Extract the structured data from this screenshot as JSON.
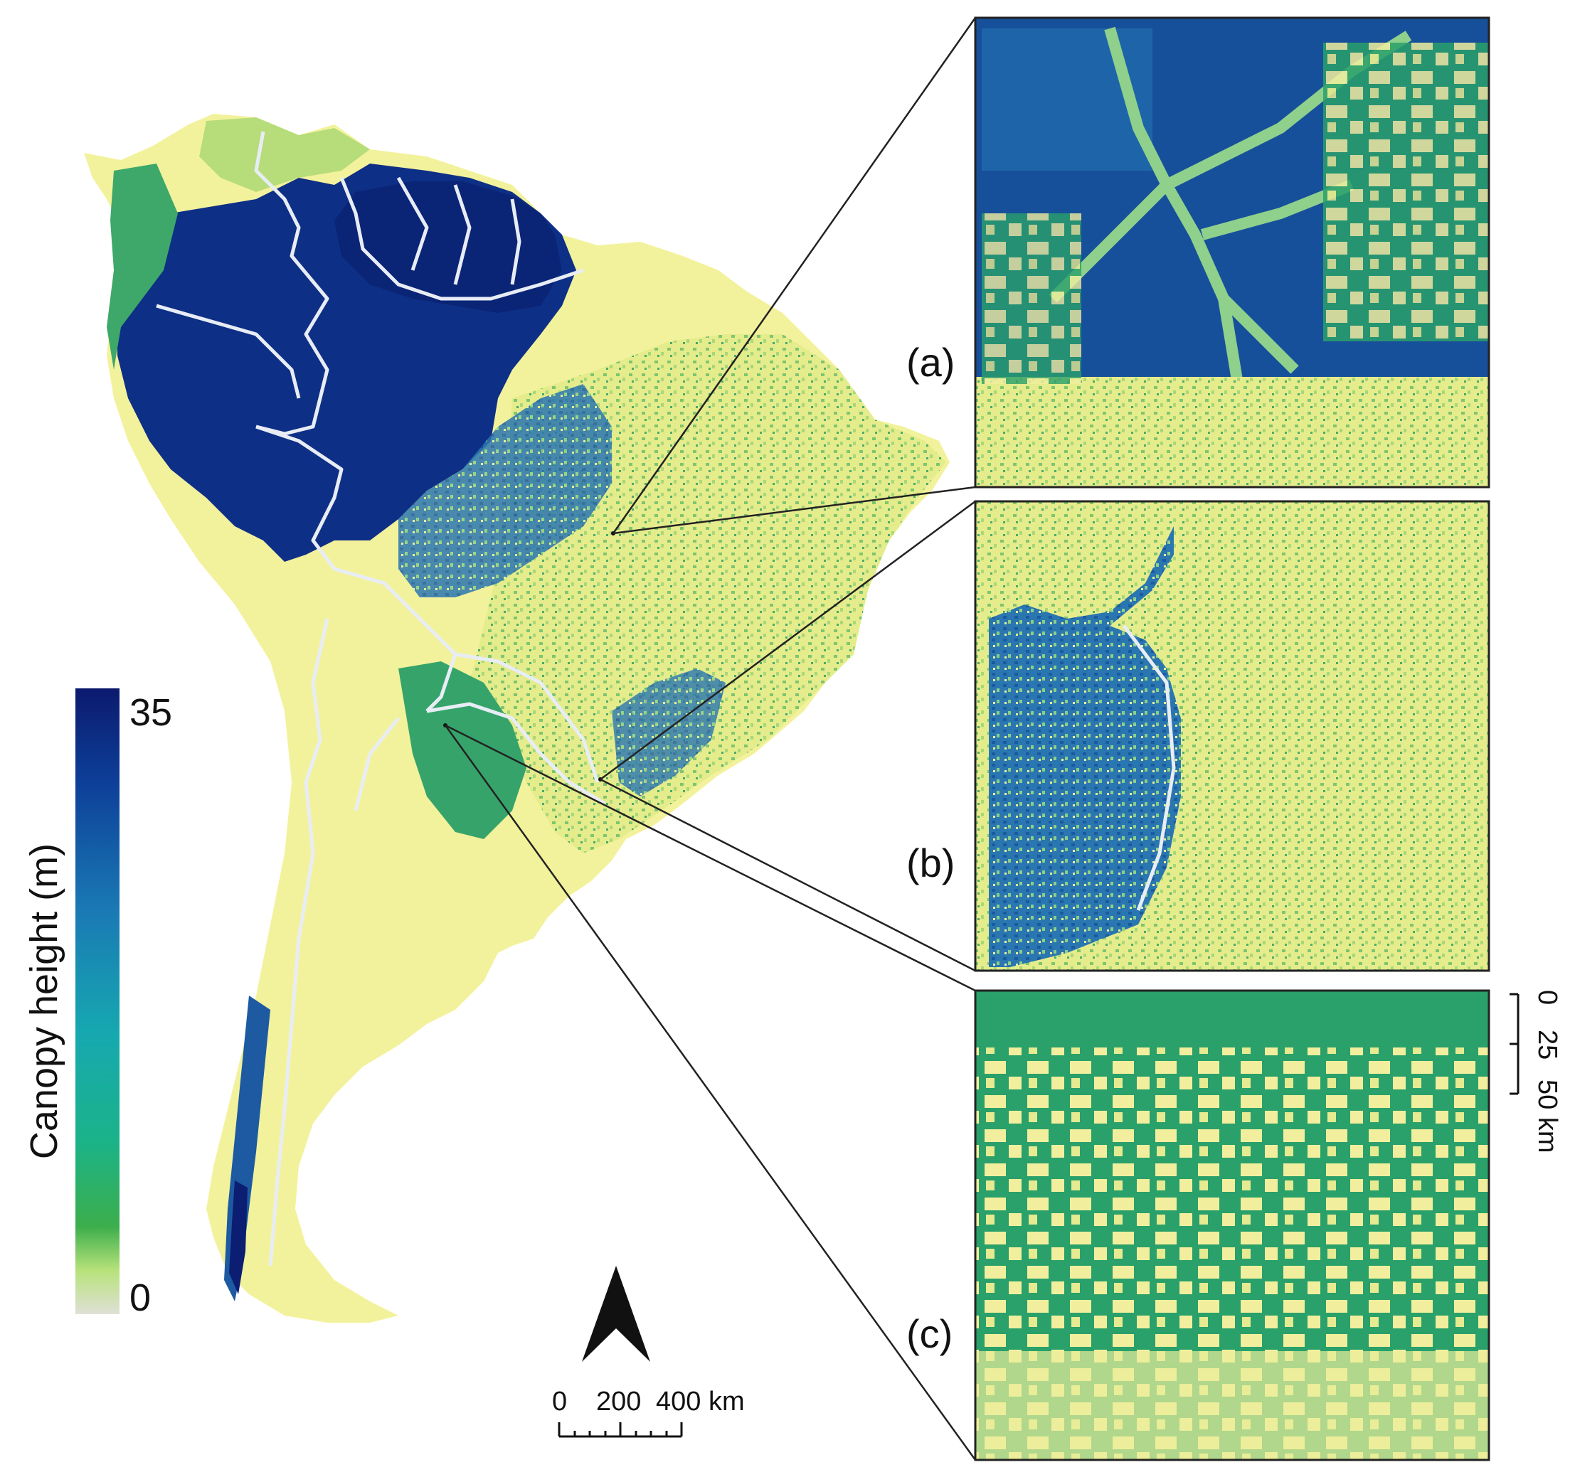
{
  "colorbar": {
    "title": "Canopy height (m)",
    "max_label": "35",
    "min_label": "0",
    "stops": [
      "#0b1a6e",
      "#0d3f98",
      "#1a78b4",
      "#16a8b0",
      "#1ab38a",
      "#3cae4c",
      "#b7e27a",
      "#dfe0d6"
    ]
  },
  "panels": [
    {
      "label": "(a)"
    },
    {
      "label": "(b)"
    },
    {
      "label": "(c)"
    }
  ],
  "main_scalebar": {
    "labels": [
      "0",
      "200",
      "400 km"
    ]
  },
  "inset_scalebar": {
    "labels": [
      "0",
      "25",
      "50 km"
    ]
  },
  "colors": {
    "dark_blue": "#0d2a7a",
    "mid_blue": "#1e5fa8",
    "green": "#2aa86a",
    "yellow": "#f3f09a",
    "light_green": "#b9dc78",
    "border": "#e8edf5"
  }
}
